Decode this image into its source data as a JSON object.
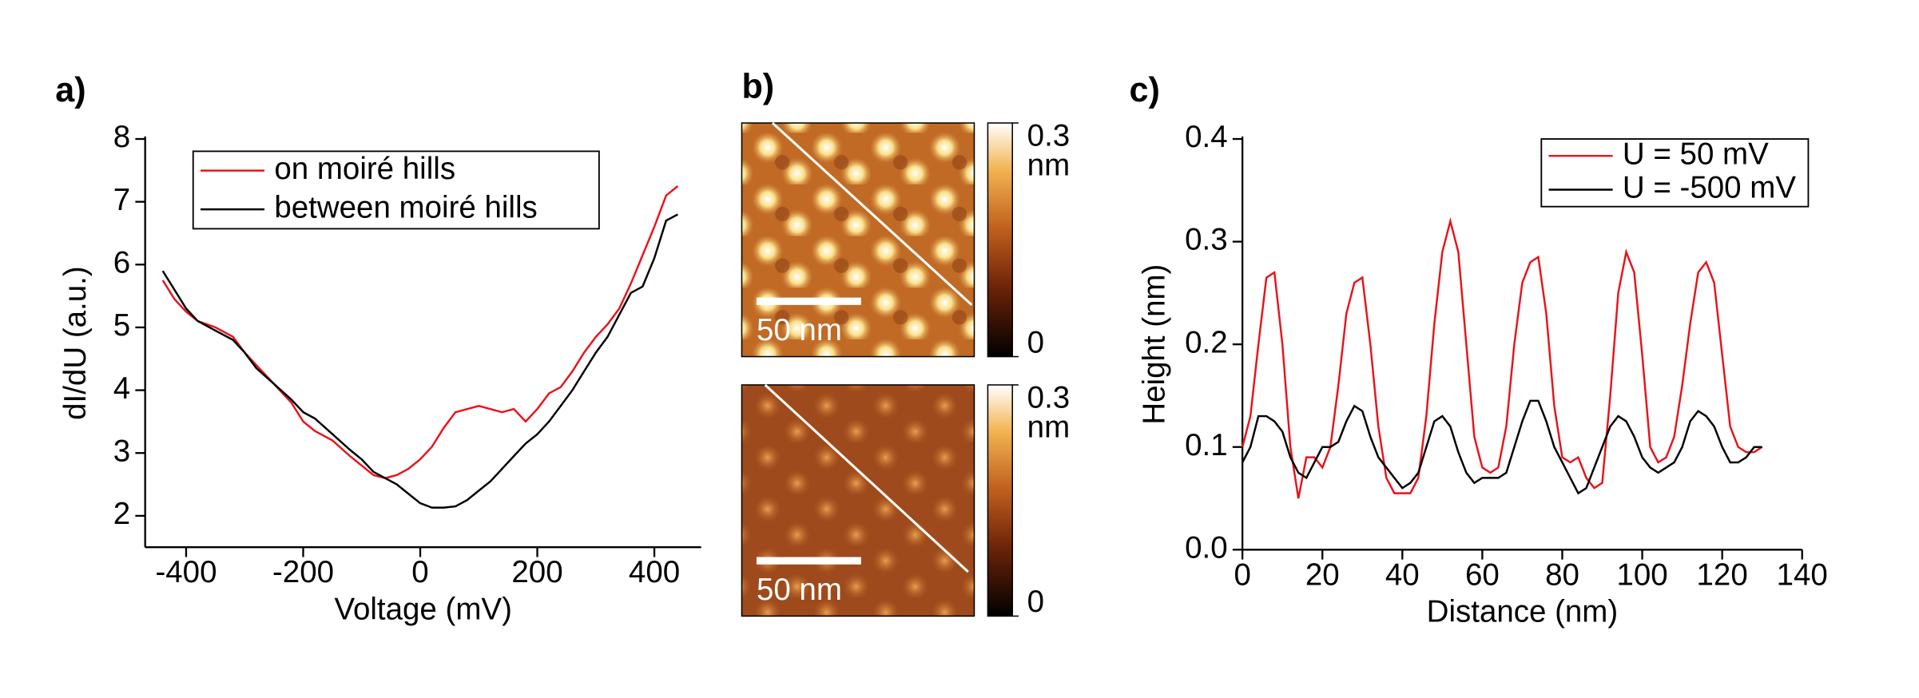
{
  "chart_data": [
    {
      "type": "line",
      "label": "a)",
      "x_label": "Voltage (mV)",
      "y_label": "dI/dU (a.u.)",
      "xlim": [
        -470,
        480
      ],
      "xticks": [
        -400,
        -200,
        0,
        200,
        400
      ],
      "ylim": [
        1.5,
        8
      ],
      "yticks": [
        2,
        3,
        4,
        5,
        6,
        7,
        8
      ],
      "legend": "upper left",
      "x": [
        -440,
        -420,
        -400,
        -380,
        -350,
        -320,
        -300,
        -280,
        -250,
        -220,
        -200,
        -180,
        -150,
        -120,
        -100,
        -80,
        -60,
        -40,
        -20,
        0,
        20,
        40,
        60,
        80,
        100,
        120,
        140,
        160,
        180,
        200,
        220,
        240,
        260,
        280,
        300,
        320,
        340,
        360,
        380,
        400,
        420,
        440
      ],
      "series": [
        {
          "name": "on moiré hills",
          "color": "#e8141b",
          "values": [
            5.75,
            5.45,
            5.25,
            5.1,
            5.0,
            4.85,
            4.6,
            4.4,
            4.1,
            3.8,
            3.5,
            3.35,
            3.2,
            2.95,
            2.8,
            2.65,
            2.6,
            2.65,
            2.75,
            2.9,
            3.1,
            3.4,
            3.65,
            3.7,
            3.75,
            3.7,
            3.65,
            3.7,
            3.5,
            3.7,
            3.95,
            4.05,
            4.3,
            4.6,
            4.85,
            5.05,
            5.3,
            5.7,
            6.15,
            6.6,
            7.1,
            7.25
          ]
        },
        {
          "name": "between moiré hills",
          "color": "#000000",
          "values": [
            5.9,
            5.6,
            5.3,
            5.1,
            4.95,
            4.8,
            4.6,
            4.35,
            4.1,
            3.85,
            3.65,
            3.55,
            3.3,
            3.05,
            2.9,
            2.7,
            2.6,
            2.5,
            2.35,
            2.2,
            2.13,
            2.13,
            2.15,
            2.25,
            2.4,
            2.55,
            2.75,
            2.95,
            3.15,
            3.3,
            3.5,
            3.75,
            4.0,
            4.3,
            4.6,
            4.85,
            5.2,
            5.55,
            5.65,
            6.1,
            6.7,
            6.8
          ]
        }
      ]
    },
    {
      "type": "image",
      "label": "b)",
      "scale_bar": "50 nm",
      "clim": [
        0,
        0.3
      ],
      "cticks": [
        0,
        0.3
      ],
      "colorbar_unit": "nm"
    },
    {
      "type": "image",
      "scale_bar": "50 nm",
      "clim": [
        0,
        0.3
      ],
      "cticks": [
        0,
        0.3
      ],
      "colorbar_unit": "nm"
    },
    {
      "type": "line",
      "label": "c)",
      "x_label": "Distance (nm)",
      "y_label": "Height (nm)",
      "xlim": [
        0,
        140
      ],
      "xticks": [
        0,
        20,
        40,
        60,
        80,
        100,
        120,
        140
      ],
      "ylim": [
        0,
        0.4
      ],
      "yticks": [
        {
          "value": 0,
          "label": "0.0"
        },
        0.1,
        0.2,
        0.3,
        0.4
      ],
      "legend": "upper right",
      "x": [
        0,
        2,
        4,
        6,
        8,
        10,
        12,
        14,
        16,
        18,
        20,
        22,
        24,
        26,
        28,
        30,
        32,
        34,
        36,
        38,
        40,
        42,
        44,
        46,
        48,
        50,
        52,
        54,
        56,
        58,
        60,
        62,
        64,
        66,
        68,
        70,
        72,
        74,
        76,
        78,
        80,
        82,
        84,
        86,
        88,
        90,
        92,
        94,
        96,
        98,
        100,
        102,
        104,
        106,
        108,
        110,
        112,
        114,
        116,
        118,
        120,
        122,
        124,
        126,
        128,
        130
      ],
      "series": [
        {
          "name": "U = 50 mV",
          "color": "#e8141b",
          "values": [
            0.1,
            0.13,
            0.2,
            0.265,
            0.27,
            0.2,
            0.1,
            0.05,
            0.09,
            0.09,
            0.08,
            0.1,
            0.16,
            0.23,
            0.26,
            0.265,
            0.2,
            0.12,
            0.07,
            0.055,
            0.055,
            0.055,
            0.07,
            0.13,
            0.22,
            0.29,
            0.32,
            0.29,
            0.2,
            0.11,
            0.08,
            0.075,
            0.08,
            0.12,
            0.2,
            0.26,
            0.28,
            0.285,
            0.23,
            0.14,
            0.09,
            0.085,
            0.09,
            0.07,
            0.06,
            0.065,
            0.15,
            0.25,
            0.29,
            0.27,
            0.19,
            0.1,
            0.085,
            0.09,
            0.11,
            0.16,
            0.22,
            0.27,
            0.28,
            0.26,
            0.19,
            0.12,
            0.1,
            0.095,
            0.095,
            0.1
          ]
        },
        {
          "name": "U = -500 mV",
          "color": "#000000",
          "values": [
            0.085,
            0.1,
            0.13,
            0.13,
            0.125,
            0.115,
            0.09,
            0.075,
            0.07,
            0.085,
            0.1,
            0.1,
            0.105,
            0.125,
            0.14,
            0.135,
            0.11,
            0.09,
            0.08,
            0.07,
            0.06,
            0.065,
            0.075,
            0.1,
            0.125,
            0.13,
            0.12,
            0.095,
            0.075,
            0.065,
            0.07,
            0.07,
            0.07,
            0.075,
            0.1,
            0.125,
            0.145,
            0.145,
            0.125,
            0.1,
            0.085,
            0.07,
            0.055,
            0.06,
            0.08,
            0.1,
            0.12,
            0.13,
            0.125,
            0.11,
            0.09,
            0.08,
            0.075,
            0.08,
            0.085,
            0.1,
            0.125,
            0.135,
            0.13,
            0.12,
            0.1,
            0.085,
            0.085,
            0.09,
            0.1,
            0.1
          ]
        }
      ]
    }
  ]
}
